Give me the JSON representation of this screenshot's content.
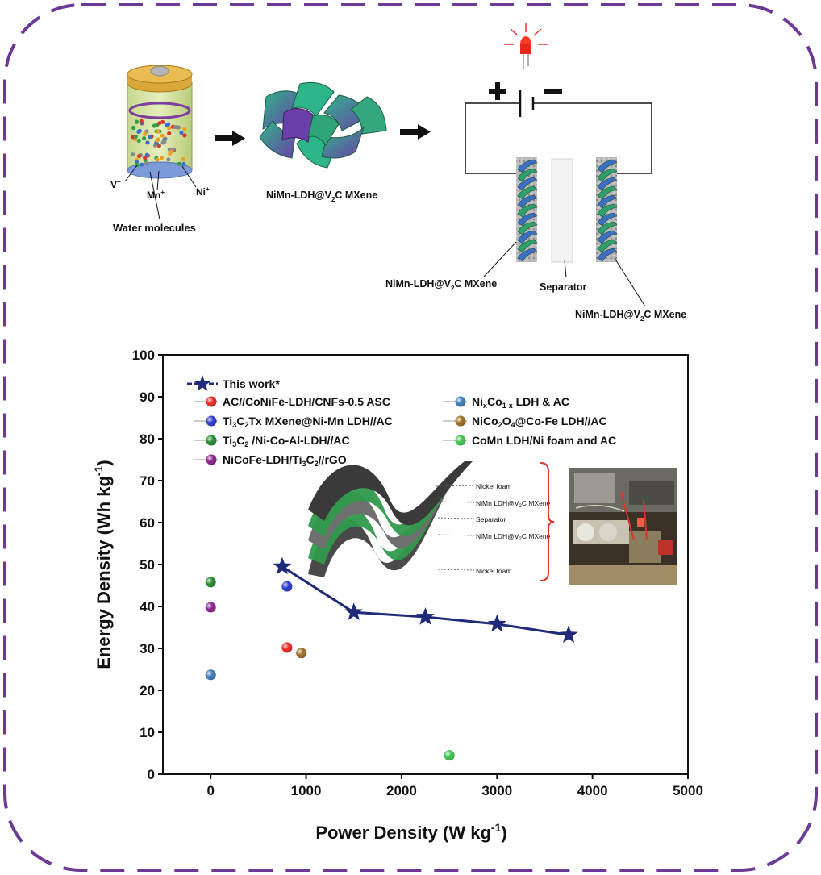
{
  "colors": {
    "frame": "#6a3a96",
    "line": "#1f2a78",
    "star": "#1f2a78"
  },
  "scheme": {
    "ions": {
      "v": "V",
      "mn": "Mn",
      "ni": "Ni",
      "plus": "+"
    },
    "water": "Water molecules",
    "composite": "NiMn-LDH@V",
    "sub2": "2",
    "composite_tail": "C MXene",
    "separator": "Separator"
  },
  "inset": {
    "labels": [
      "Nickel foam",
      "NiMn LDH@V",
      "Separator",
      "NiMn LDH@V",
      "Nickel foam"
    ],
    "mx_sub": "2",
    "mx_tail": "C MXene"
  },
  "chart_data": {
    "type": "scatter",
    "xlabel": "Power Density (W kg",
    "xlabel_sup": "-1",
    "ylabel": "Energy Density (Wh kg",
    "ylabel_sup": "-1",
    "xlim": [
      -500,
      5000
    ],
    "ylim": [
      0,
      100
    ],
    "xticks": [
      0,
      1000,
      2000,
      3000,
      4000,
      5000
    ],
    "yticks": [
      0,
      10,
      20,
      30,
      40,
      50,
      60,
      70,
      80,
      90,
      100
    ],
    "legend_position": "top-left",
    "series": [
      {
        "name": "This work*",
        "marker": "star",
        "color": "#1f2a78",
        "line": true,
        "x": [
          750,
          1500,
          2250,
          3000,
          3750
        ],
        "y": [
          49.5,
          38.6,
          37.5,
          35.8,
          33.2
        ]
      },
      {
        "name": "AC//CoNiFe-LDH/CNFs-0.5 ASC",
        "marker": "ball",
        "color": "#e8231f",
        "x": [
          800
        ],
        "y": [
          30.2
        ]
      },
      {
        "name": "Ti3C2Tx MXene@Ni-Mn LDH//AC",
        "marker": "ball",
        "color": "#2a35c9",
        "x": [
          800
        ],
        "y": [
          44.8
        ]
      },
      {
        "name": "Ti3C2 /Ni-Co-Al-LDH//AC",
        "marker": "ball",
        "color": "#1f8a2a",
        "x": [
          0
        ],
        "y": [
          45.8
        ]
      },
      {
        "name": "NiCoFe-LDH/Ti3C2//rGO",
        "marker": "ball",
        "color": "#8a1f8f",
        "x": [
          0
        ],
        "y": [
          39.8
        ]
      },
      {
        "name": "NixCo1-x LDH & AC",
        "marker": "ball",
        "color": "#3a78b4",
        "x": [
          0
        ],
        "y": [
          23.7
        ]
      },
      {
        "name": "NiCo2O4@Co-Fe LDH//AC",
        "marker": "ball",
        "color": "#9a6a22",
        "x": [
          950
        ],
        "y": [
          28.9
        ]
      },
      {
        "name": "CoMn LDH/Ni foam and AC",
        "marker": "ball",
        "color": "#3ac24a",
        "x": [
          2500
        ],
        "y": [
          4.5
        ]
      }
    ]
  }
}
